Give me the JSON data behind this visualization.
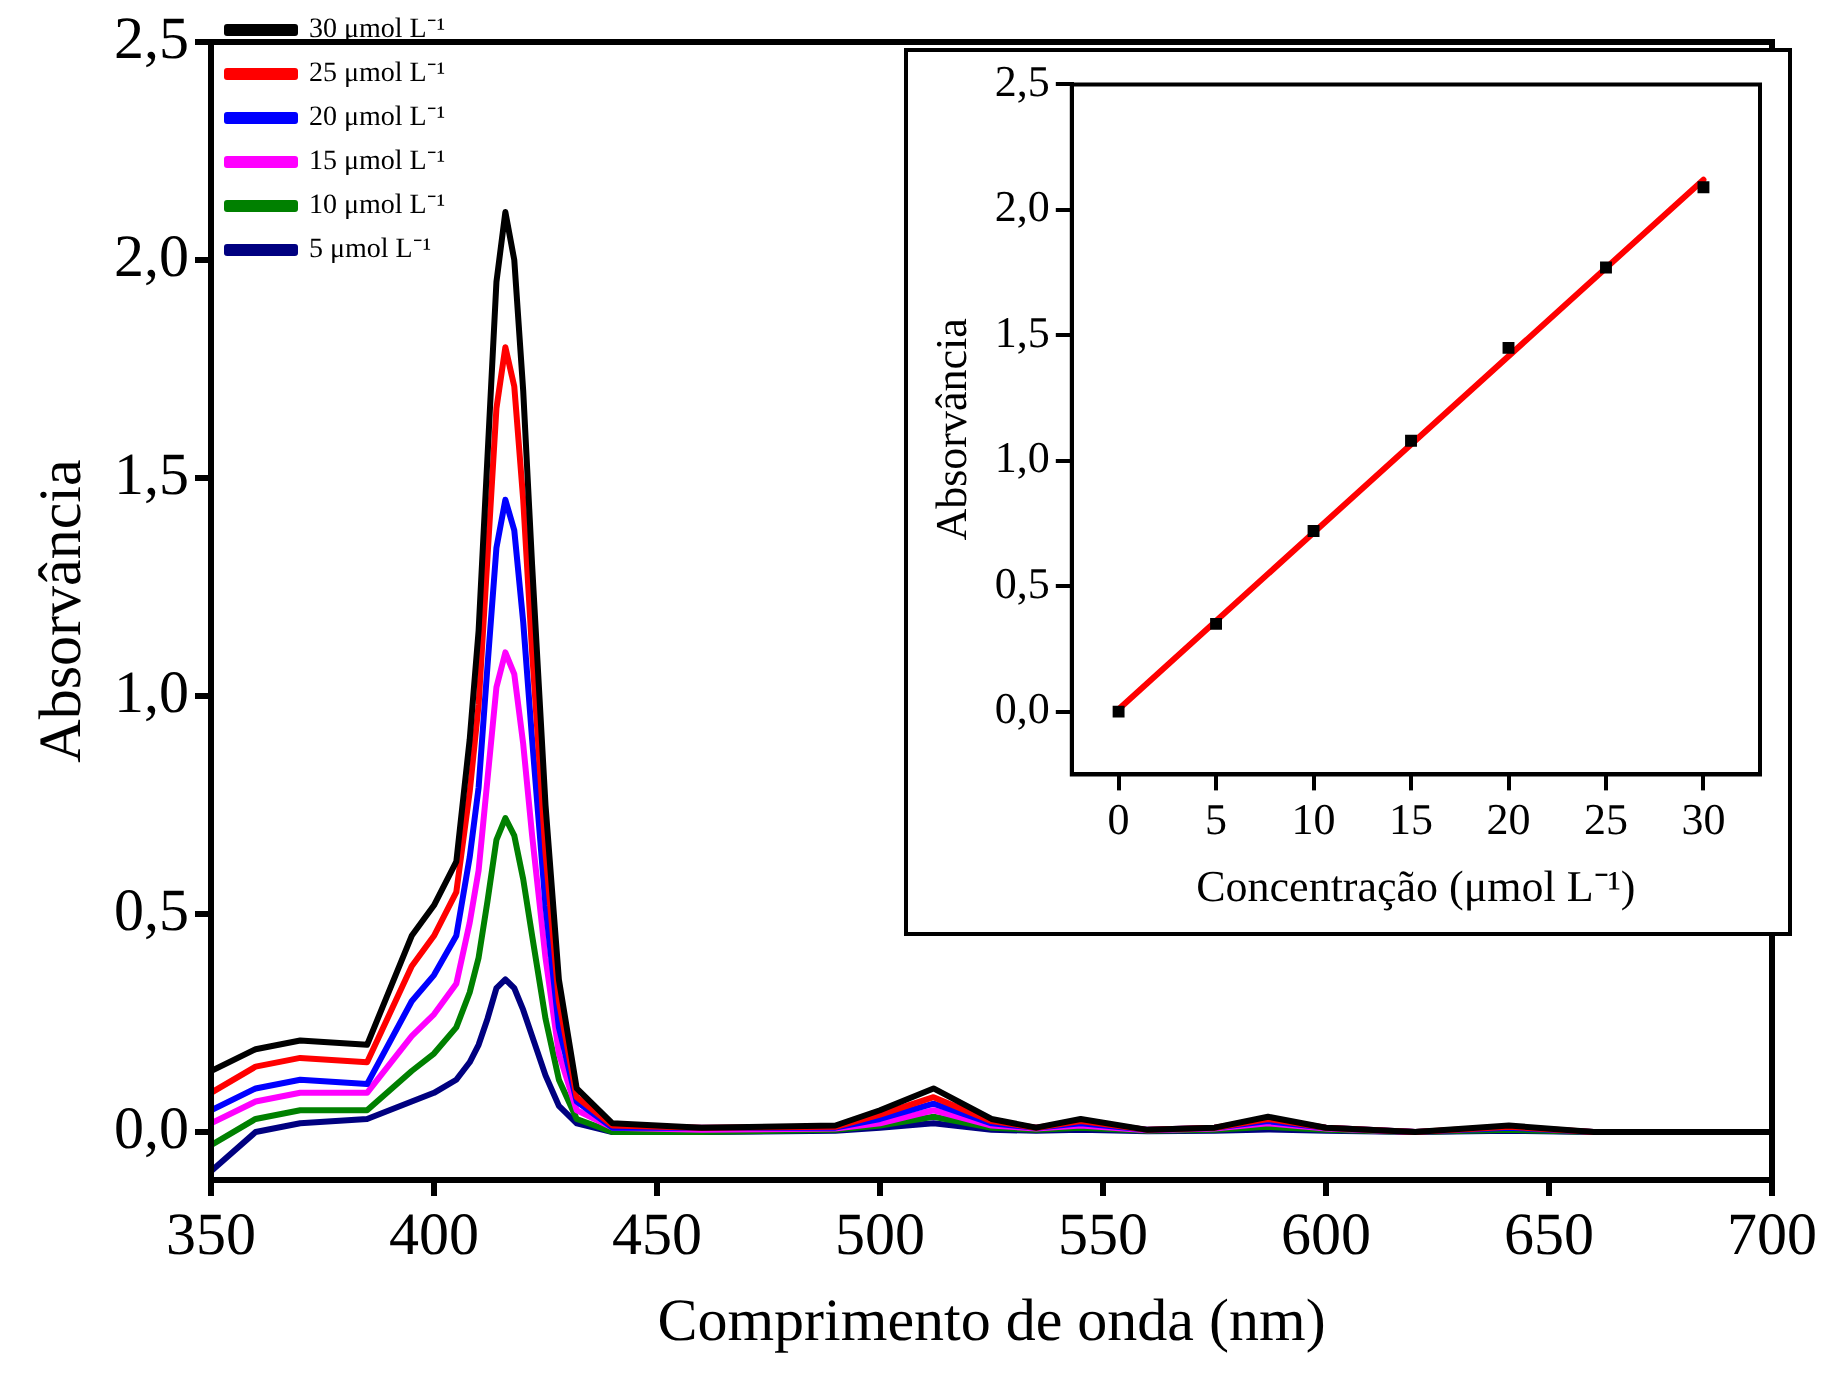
{
  "chart_data": [
    {
      "type": "line",
      "xlabel": "Comprimento de onda (nm)",
      "ylabel": "Absorvância",
      "xlim": [
        350,
        700
      ],
      "xticks": [
        350,
        400,
        450,
        500,
        550,
        600,
        650,
        700
      ],
      "ylim": [
        -0.11,
        2.5
      ],
      "yticks": [
        {
          "value": 0,
          "label": "0,0"
        },
        {
          "value": 0.5,
          "label": "0,5"
        },
        {
          "value": 1,
          "label": "1,0"
        },
        {
          "value": 1.5,
          "label": "1,5"
        },
        {
          "value": 2,
          "label": "2,0"
        },
        {
          "value": 2.5,
          "label": "2,5"
        }
      ],
      "grid": false,
      "legend": "top left",
      "marker": "none",
      "line_style": "solid",
      "x": [
        350,
        360,
        370,
        385,
        395,
        400,
        405,
        408,
        410,
        412,
        414,
        416,
        418,
        420,
        422,
        425,
        428,
        432,
        440,
        460,
        490,
        500,
        512,
        525,
        535,
        545,
        560,
        575,
        587,
        600,
        620,
        641,
        660,
        700
      ],
      "series": [
        {
          "name": "30 μmol L⁻¹",
          "color": "#000000",
          "values": [
            0.14,
            0.19,
            0.21,
            0.2,
            0.45,
            0.52,
            0.62,
            0.9,
            1.15,
            1.55,
            1.95,
            2.11,
            2.0,
            1.7,
            1.3,
            0.75,
            0.35,
            0.1,
            0.02,
            0.01,
            0.015,
            0.05,
            0.1,
            0.03,
            0.01,
            0.03,
            0.005,
            0.01,
            0.035,
            0.01,
            0,
            0.015,
            0,
            0
          ]
        },
        {
          "name": "25 μmol L⁻¹",
          "color": "#ff0000",
          "values": [
            0.09,
            0.15,
            0.17,
            0.16,
            0.38,
            0.45,
            0.55,
            0.78,
            0.98,
            1.32,
            1.66,
            1.8,
            1.71,
            1.45,
            1.1,
            0.64,
            0.3,
            0.08,
            0.015,
            0.01,
            0.012,
            0.04,
            0.08,
            0.025,
            0.01,
            0.025,
            0.005,
            0.01,
            0.03,
            0.01,
            0,
            0.012,
            0,
            0
          ]
        },
        {
          "name": "20 μmol L⁻¹",
          "color": "#0000ff",
          "values": [
            0.05,
            0.1,
            0.12,
            0.11,
            0.3,
            0.36,
            0.45,
            0.63,
            0.79,
            1.07,
            1.34,
            1.45,
            1.38,
            1.17,
            0.9,
            0.52,
            0.24,
            0.07,
            0.01,
            0.01,
            0.01,
            0.03,
            0.065,
            0.02,
            0.01,
            0.02,
            0.005,
            0.01,
            0.025,
            0.01,
            0,
            0.01,
            0,
            0
          ]
        },
        {
          "name": "15 μmol L⁻¹",
          "color": "#ff00ff",
          "values": [
            0.02,
            0.07,
            0.09,
            0.09,
            0.22,
            0.27,
            0.34,
            0.48,
            0.6,
            0.81,
            1.02,
            1.1,
            1.05,
            0.89,
            0.68,
            0.4,
            0.18,
            0.05,
            0.01,
            0.005,
            0.008,
            0.02,
            0.05,
            0.015,
            0.008,
            0.015,
            0.004,
            0.008,
            0.02,
            0.008,
            0,
            null,
            null,
            null
          ]
        },
        {
          "name": "10 μmol L⁻¹",
          "color": "#008000",
          "values": [
            -0.03,
            0.03,
            0.05,
            0.05,
            0.14,
            0.18,
            0.24,
            0.32,
            0.4,
            0.53,
            0.67,
            0.72,
            0.68,
            0.58,
            0.45,
            0.26,
            0.12,
            0.03,
            0,
            0,
            0.005,
            0.015,
            0.035,
            0.01,
            0.005,
            0.01,
            0.003,
            0.005,
            0.012,
            0.005,
            0,
            0.005,
            0,
            0
          ]
        },
        {
          "name": "5 μmol L⁻¹",
          "color": "#000080",
          "values": [
            -0.09,
            0,
            0.02,
            0.03,
            0.07,
            0.09,
            0.12,
            0.16,
            0.2,
            0.26,
            0.33,
            0.35,
            0.33,
            0.28,
            0.22,
            0.13,
            0.06,
            0.02,
            0,
            0,
            0.003,
            0.01,
            0.02,
            0.005,
            0.003,
            0.005,
            0.002,
            0.003,
            0.006,
            0.003,
            0,
            0.003,
            0,
            0
          ]
        }
      ]
    },
    {
      "type": "scatter",
      "xlabel": "Concentração (μmol L⁻¹)",
      "ylabel": "Absorvância",
      "xlim": [
        -2.4,
        32.9
      ],
      "xticks": [
        0,
        5,
        10,
        15,
        20,
        25,
        30
      ],
      "ylim": [
        -0.25,
        2.5
      ],
      "yticks": [
        {
          "value": 0,
          "label": "0,0"
        },
        {
          "value": 0.5,
          "label": "0,5"
        },
        {
          "value": 1,
          "label": "1,0"
        },
        {
          "value": 1.5,
          "label": "1,5"
        },
        {
          "value": 2,
          "label": "2,0"
        },
        {
          "value": 2.5,
          "label": "2,5"
        }
      ],
      "grid": false,
      "legend": false,
      "marker": "square",
      "x": [
        0,
        5,
        10,
        15,
        20,
        25,
        30
      ],
      "series": [
        {
          "color": "#000000",
          "values": [
            0,
            0.35,
            0.72,
            1.08,
            1.45,
            1.77,
            2.09
          ]
        },
        {
          "type": "line",
          "color": "#ff0000",
          "marker": "none",
          "x": [
            0,
            30
          ],
          "values": [
            0.01,
            2.12
          ]
        }
      ]
    }
  ]
}
